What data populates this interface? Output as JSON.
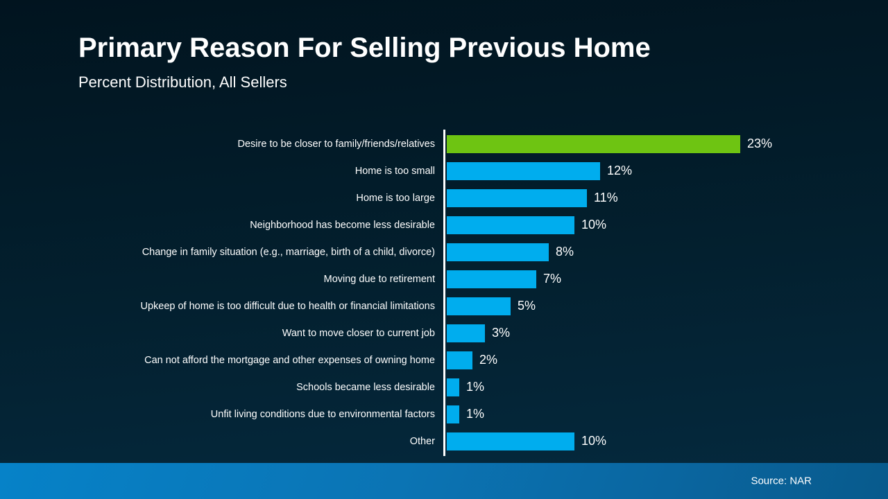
{
  "header": {
    "title": "Primary Reason For Selling Previous Home",
    "subtitle": "Percent Distribution, All Sellers"
  },
  "footer": {
    "source": "Source: NAR"
  },
  "chart_data": {
    "type": "bar",
    "orientation": "horizontal",
    "title": "Primary Reason For Selling Previous Home",
    "subtitle": "Percent Distribution, All Sellers",
    "categories": [
      "Desire to be closer to family/friends/relatives",
      "Home is too small",
      "Home is too large",
      "Neighborhood has become less desirable",
      "Change in family situation (e.g., marriage, birth of a child, divorce)",
      "Moving due to retirement",
      "Upkeep of home is too difficult due to health or financial limitations",
      "Want to move closer to current job",
      "Can not afford the mortgage and other expenses of owning home",
      "Schools became less desirable",
      "Unfit living conditions due to environmental factors",
      "Other"
    ],
    "values": [
      23,
      12,
      11,
      10,
      8,
      7,
      5,
      3,
      2,
      1,
      1,
      10
    ],
    "value_labels": [
      "23%",
      "12%",
      "11%",
      "10%",
      "8%",
      "7%",
      "5%",
      "3%",
      "2%",
      "1%",
      "1%",
      "10%"
    ],
    "xlabel": "",
    "ylabel": "",
    "xlim": [
      0,
      25
    ],
    "grid": false,
    "legend": false,
    "highlight_index": 0,
    "colors": {
      "highlight_bar": "#6EC412",
      "default_bar": "#00ADEE",
      "axis": "#FFFFFF",
      "text": "#FFFFFF",
      "background_top": "#01141F",
      "background_bottom": "#052A3F",
      "footer_left": "#0682C8",
      "footer_right": "#085A8C"
    }
  }
}
